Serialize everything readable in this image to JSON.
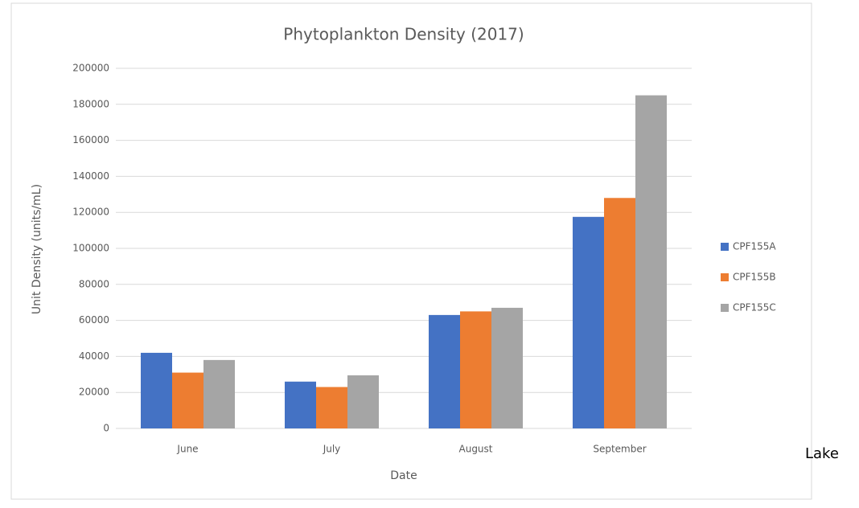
{
  "chart_data": {
    "type": "bar",
    "title": "Phytoplankton Density (2017)",
    "x_label": "Date",
    "y_label": "Unit Density (units/mL)",
    "categories": [
      "June",
      "July",
      "August",
      "September"
    ],
    "series": [
      {
        "name": "CPF155A",
        "color": "#4472c4",
        "values": [
          42000,
          26000,
          63000,
          117500
        ]
      },
      {
        "name": "CPF155B",
        "color": "#ed7d31",
        "values": [
          31000,
          23000,
          65000,
          128000
        ]
      },
      {
        "name": "CPF155C",
        "color": "#a5a5a5",
        "values": [
          38000,
          29500,
          67000,
          185000
        ]
      }
    ],
    "ylim": [
      0,
      200000
    ],
    "yticks": [
      0,
      20000,
      40000,
      60000,
      80000,
      100000,
      120000,
      140000,
      160000,
      180000,
      200000
    ],
    "grid": true,
    "legend": "right",
    "annotations": [
      "Lake"
    ]
  }
}
